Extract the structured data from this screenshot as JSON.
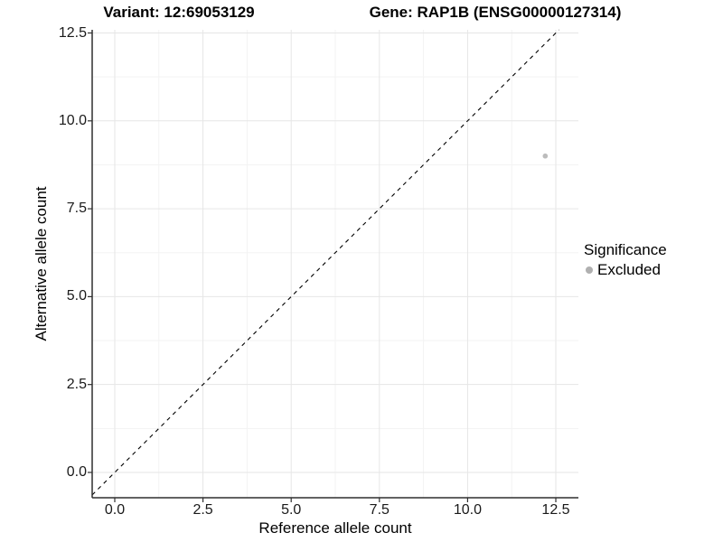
{
  "header": {
    "variant_title": "Variant: 12:69053129",
    "gene_title": "Gene: RAP1B (ENSG00000127314)"
  },
  "chart_data": {
    "type": "scatter",
    "xlabel": "Reference allele count",
    "ylabel": "Alternative allele count",
    "xlim": [
      -0.64,
      13.14
    ],
    "ylim": [
      -0.72,
      12.59
    ],
    "x_ticks": {
      "values": [
        0,
        2.5,
        5,
        7.5,
        10,
        12.5
      ],
      "labels": [
        "0.0",
        "2.5",
        "5.0",
        "7.5",
        "10.0",
        "12.5"
      ]
    },
    "y_ticks": {
      "values": [
        0,
        2.5,
        5,
        7.5,
        10,
        12.5
      ],
      "labels": [
        "0.0",
        "2.5",
        "5.0",
        "7.5",
        "10.0",
        "12.5"
      ]
    },
    "x_minor": [
      1.25,
      3.75,
      6.25,
      8.75,
      11.25
    ],
    "y_minor": [
      1.25,
      3.75,
      6.25,
      8.75,
      11.25
    ],
    "grid": true,
    "reference_line": {
      "slope": 1,
      "intercept": 0,
      "style": "dashed",
      "color": "#000000"
    },
    "series": [
      {
        "name": "Excluded",
        "color": "#bcbcbc",
        "points": [
          {
            "x": 12.2,
            "y": 9.0
          }
        ]
      }
    ],
    "legend": {
      "title": "Significance",
      "position": "right",
      "items": [
        {
          "label": "Excluded",
          "color": "#b0b0b0"
        }
      ]
    }
  },
  "colors": {
    "grid_major": "#e6e6e6",
    "grid_minor": "#f3f3f3",
    "axis_line": "#2f2f2f",
    "tick_mark": "#2f2f2f"
  }
}
